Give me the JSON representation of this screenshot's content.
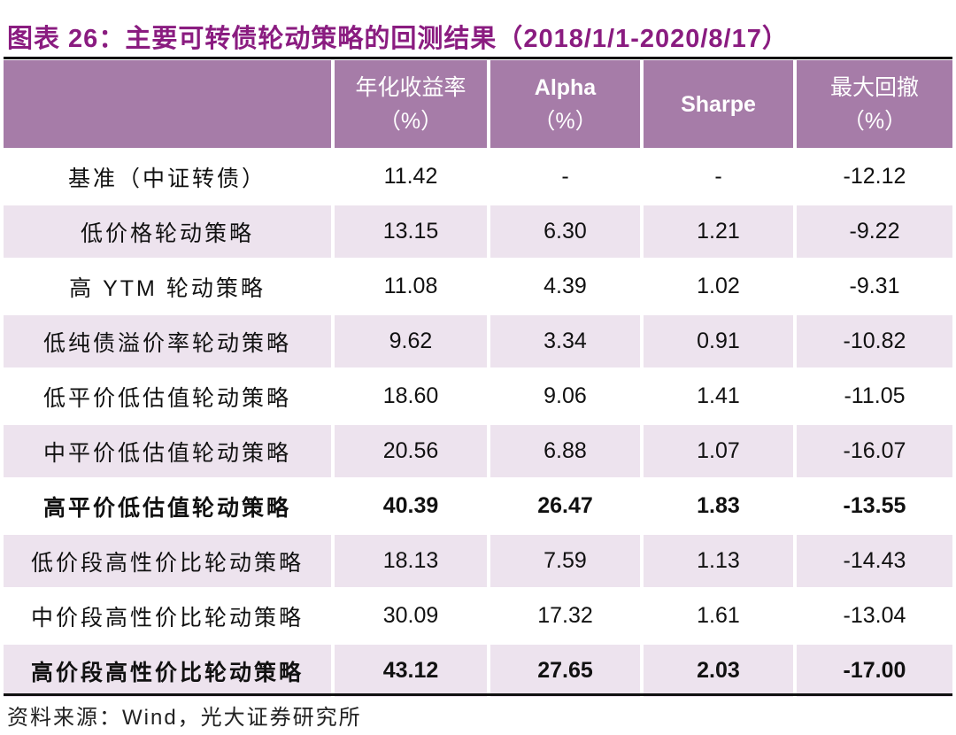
{
  "title": "图表 26：主要可转债轮动策略的回测结果（2018/1/1-2020/8/17）",
  "colors": {
    "title": "#8a1c80",
    "header_bg": "#a67ca8",
    "alt_row_bg": "#ede3ee"
  },
  "table": {
    "headers": [
      {
        "line1": "",
        "line2": ""
      },
      {
        "line1": "年化收益率",
        "line2": "（%）"
      },
      {
        "line1": "Alpha",
        "line2": "（%）"
      },
      {
        "line1": "Sharpe",
        "line2": ""
      },
      {
        "line1": "最大回撤",
        "line2": "（%）"
      }
    ],
    "rows": [
      {
        "cells": [
          "基准（中证转债）",
          "11.42",
          "-",
          "-",
          "-12.12"
        ],
        "bold": false
      },
      {
        "cells": [
          "低价格轮动策略",
          "13.15",
          "6.30",
          "1.21",
          "-9.22"
        ],
        "bold": false
      },
      {
        "cells": [
          "高 YTM 轮动策略",
          "11.08",
          "4.39",
          "1.02",
          "-9.31"
        ],
        "bold": false
      },
      {
        "cells": [
          "低纯债溢价率轮动策略",
          "9.62",
          "3.34",
          "0.91",
          "-10.82"
        ],
        "bold": false
      },
      {
        "cells": [
          "低平价低估值轮动策略",
          "18.60",
          "9.06",
          "1.41",
          "-11.05"
        ],
        "bold": false
      },
      {
        "cells": [
          "中平价低估值轮动策略",
          "20.56",
          "6.88",
          "1.07",
          "-16.07"
        ],
        "bold": false
      },
      {
        "cells": [
          "高平价低估值轮动策略",
          "40.39",
          "26.47",
          "1.83",
          "-13.55"
        ],
        "bold": true
      },
      {
        "cells": [
          "低价段高性价比轮动策略",
          "18.13",
          "7.59",
          "1.13",
          "-14.43"
        ],
        "bold": false
      },
      {
        "cells": [
          "中价段高性价比轮动策略",
          "30.09",
          "17.32",
          "1.61",
          "-13.04"
        ],
        "bold": false
      },
      {
        "cells": [
          "高价段高性价比轮动策略",
          "43.12",
          "27.65",
          "2.03",
          "-17.00"
        ],
        "bold": true
      }
    ]
  },
  "source": "资料来源：Wind，光大证券研究所"
}
